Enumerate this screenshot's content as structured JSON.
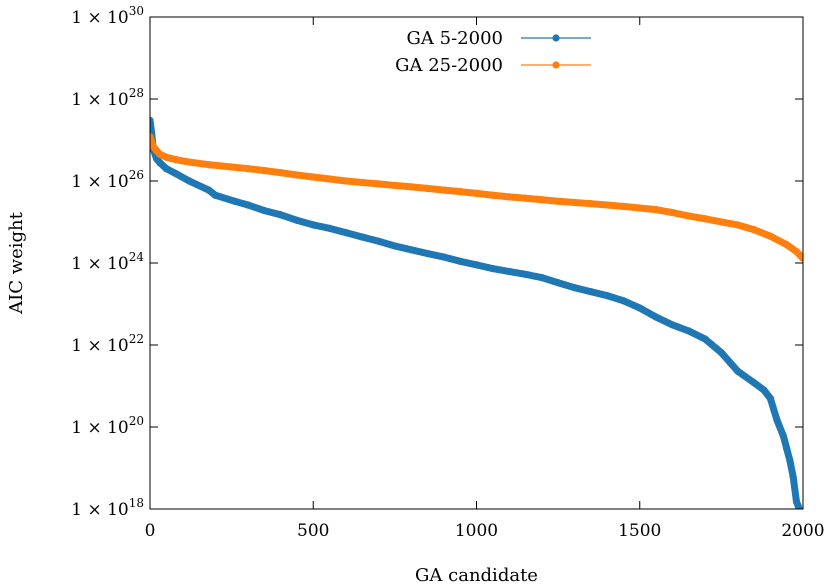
{
  "chart_data": {
    "type": "scatter",
    "xlabel": "GA candidate",
    "ylabel": "AIC weight",
    "xlim": [
      0,
      2000
    ],
    "ylim_log10": [
      18,
      30
    ],
    "y_scale": "log",
    "x_ticks": [
      0,
      500,
      1000,
      1500,
      2000
    ],
    "x_tick_labels": [
      "0",
      "500",
      "1000",
      "1500",
      "2000"
    ],
    "y_ticks_log10": [
      18,
      20,
      22,
      24,
      26,
      28,
      30
    ],
    "y_tick_prefix": "1 × 10",
    "y_tick_exponents": [
      "18",
      "20",
      "22",
      "24",
      "26",
      "28",
      "30"
    ],
    "grid": false,
    "legend_position": "top-center",
    "series": [
      {
        "name": "GA 5-2000",
        "color": "#1f77b4",
        "x": [
          0,
          5,
          10,
          20,
          30,
          50,
          80,
          120,
          180,
          200,
          260,
          300,
          350,
          400,
          450,
          500,
          550,
          600,
          650,
          700,
          750,
          800,
          850,
          900,
          950,
          1000,
          1050,
          1100,
          1150,
          1200,
          1250,
          1300,
          1350,
          1400,
          1450,
          1500,
          1550,
          1600,
          1650,
          1700,
          1750,
          1800,
          1850,
          1880,
          1900,
          1920,
          1940,
          1950,
          1960,
          1970,
          1980,
          1985,
          1990,
          1995,
          2000
        ],
        "y": [
          3e+27,
          1.5e+27,
          6e+26,
          3.5e+26,
          2.8e+26,
          2e+26,
          1.5e+26,
          1e+26,
          6e+25,
          4.5e+25,
          3.2e+25,
          2.6e+25,
          1.9e+25,
          1.5e+25,
          1.1e+25,
          8.5e+24,
          7e+24,
          5.5e+24,
          4.3e+24,
          3.4e+24,
          2.6e+24,
          2.1e+24,
          1.7e+24,
          1.4e+24,
          1.1e+24,
          9e+23,
          7.3e+23,
          6.2e+23,
          5.3e+23,
          4.4e+23,
          3.3e+23,
          2.5e+23,
          2e+23,
          1.6e+23,
          1.2e+23,
          8e+22,
          4.8e+22,
          3.1e+22,
          2.2e+22,
          1.4e+22,
          6.5e+21,
          2.3e+21,
          1.2e+21,
          8e+20,
          5e+20,
          1.5e+20,
          6e+19,
          3e+19,
          1.5e+19,
          6e+18,
          1.5e+18,
          1.2e+18,
          9e+17,
          5e+17,
          3e+17
        ]
      },
      {
        "name": "GA 25-2000",
        "color": "#ff7f0e",
        "x": [
          0,
          5,
          10,
          20,
          30,
          50,
          80,
          120,
          180,
          250,
          300,
          350,
          400,
          450,
          500,
          550,
          600,
          650,
          700,
          750,
          800,
          850,
          900,
          950,
          1000,
          1050,
          1100,
          1150,
          1200,
          1250,
          1300,
          1350,
          1400,
          1450,
          1500,
          1550,
          1600,
          1650,
          1700,
          1750,
          1800,
          1850,
          1900,
          1950,
          1980,
          2000
        ],
        "y": [
          1.2e+27,
          9e+26,
          7e+26,
          5.5e+26,
          4.5e+26,
          3.8e+26,
          3.3e+26,
          2.9e+26,
          2.5e+26,
          2.2e+26,
          2e+26,
          1.8e+26,
          1.6e+26,
          1.4e+26,
          1.25e+26,
          1.12e+26,
          1e+26,
          9.2e+25,
          8.5e+25,
          7.8e+25,
          7.2e+25,
          6.6e+25,
          6e+25,
          5.5e+25,
          5e+25,
          4.5e+25,
          4.1e+25,
          3.8e+25,
          3.5e+25,
          3.2e+25,
          3e+25,
          2.8e+25,
          2.6e+25,
          2.4e+25,
          2.2e+25,
          2e+25,
          1.7e+25,
          1.4e+25,
          1.2e+25,
          1e+25,
          8.5e+24,
          6.5e+24,
          4.5e+24,
          2.8e+24,
          1.9e+24,
          1.3e+24
        ]
      }
    ]
  }
}
